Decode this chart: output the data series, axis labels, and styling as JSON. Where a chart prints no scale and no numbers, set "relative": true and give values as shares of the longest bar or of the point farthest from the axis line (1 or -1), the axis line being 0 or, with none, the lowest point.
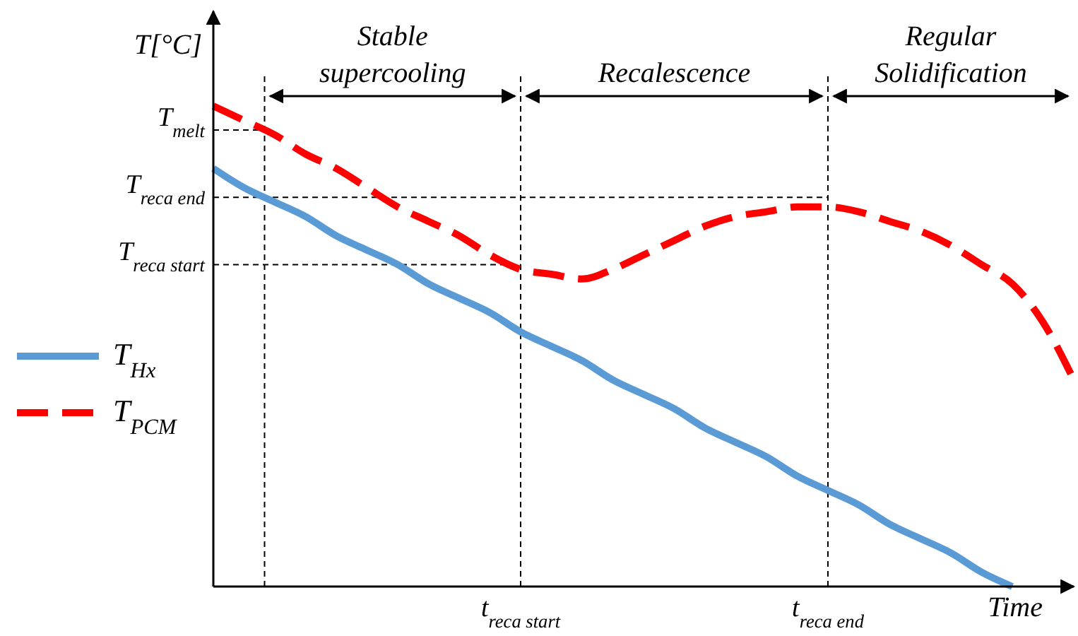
{
  "chart_data": {
    "type": "line",
    "relative": true,
    "ylabel": "T[°C]",
    "xlabel": "Time",
    "categories": [
      null,
      null,
      null,
      null,
      null,
      null,
      null,
      null,
      null,
      null,
      "t$_{reca start}$",
      null,
      null,
      null,
      null,
      null,
      null,
      null,
      null,
      null,
      "t$_{reca end}$",
      null,
      null,
      null,
      null,
      null,
      null,
      null,
      null
    ],
    "legend": "left",
    "series": [
      {
        "name": "T$_{Hx}$",
        "color": "#5b9bd5",
        "line_style": "solid",
        "values": [
          0.87,
          0.83,
          0.8,
          0.77,
          0.73,
          0.7,
          0.67,
          0.63,
          0.6,
          0.57,
          0.53,
          0.5,
          0.47,
          0.43,
          0.4,
          0.37,
          0.33,
          0.3,
          0.27,
          0.23,
          0.2,
          0.17,
          0.13,
          0.1,
          0.07,
          0.03,
          0,
          null,
          null
        ]
      },
      {
        "name": "T$_{PCM}$",
        "color": "#ff0000",
        "line_style": "dashed",
        "values": [
          1.0,
          0.97,
          0.94,
          0.9,
          0.87,
          0.83,
          0.79,
          0.76,
          0.73,
          0.69,
          0.66,
          0.65,
          0.64,
          0.66,
          0.69,
          0.72,
          0.75,
          0.77,
          0.78,
          0.79,
          0.79,
          0.78,
          0.76,
          0.74,
          0.71,
          0.67,
          0.63,
          0.55,
          0.43
        ]
      }
    ],
    "ref_lines": [
      {
        "axis": "y",
        "value": 0.95,
        "label": "T$_{melt}$",
        "line_style": "dashed"
      },
      {
        "axis": "y",
        "value": 0.81,
        "label": "T$_{reca end}$",
        "line_style": "dashed"
      },
      {
        "axis": "y",
        "value": 0.67,
        "label": "T$_{reca start}$",
        "line_style": "dashed"
      },
      {
        "axis": "x",
        "value": "t$_{reca end}$",
        "line_style": "dashed"
      },
      {
        "axis": "x",
        "value": "t$_{reca start}$",
        "line_style": "dashed"
      }
    ],
    "annotations": [
      "Stable\nsupercooling",
      "Recalescence",
      "Regular\nSolidification"
    ]
  }
}
